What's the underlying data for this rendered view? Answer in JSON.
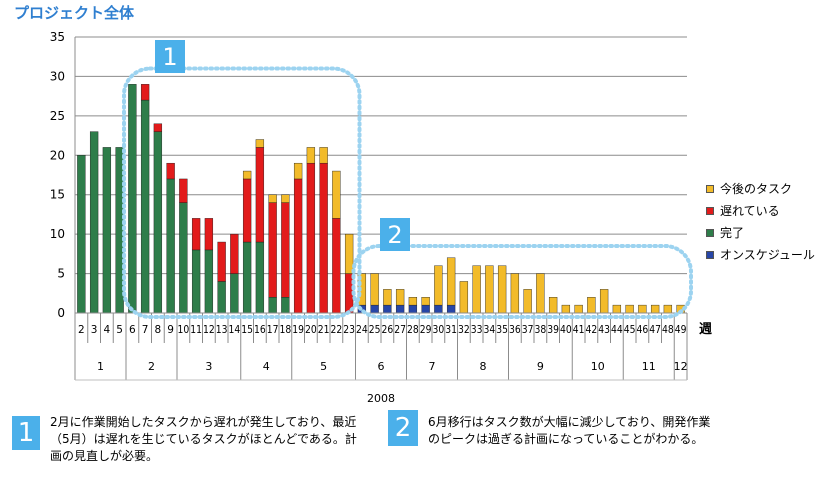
{
  "title": "プロジェクト全体",
  "colors": {
    "future": "#f2bb2a",
    "delayed": "#e21b1b",
    "done": "#2e7d4a",
    "onschedule": "#2746a7",
    "callout": "#9cd3f0",
    "badge": "#4bb0ea"
  },
  "chart_data": {
    "type": "bar",
    "stacked": true,
    "ylim": [
      0,
      35
    ],
    "yticks": [
      0,
      5,
      10,
      15,
      20,
      25,
      30,
      35
    ],
    "grid": true,
    "legend_position": "right",
    "xlabel_unit": "週",
    "year_label": "2008",
    "categories": [
      "2",
      "3",
      "4",
      "5",
      "6",
      "7",
      "8",
      "9",
      "10",
      "11",
      "12",
      "13",
      "14",
      "15",
      "16",
      "17",
      "18",
      "19",
      "20",
      "21",
      "22",
      "23",
      "24",
      "25",
      "26",
      "27",
      "28",
      "29",
      "30",
      "31",
      "32",
      "33",
      "34",
      "35",
      "36",
      "37",
      "38",
      "39",
      "40",
      "41",
      "42",
      "43",
      "44",
      "45",
      "46",
      "47",
      "48",
      "49"
    ],
    "months": [
      {
        "label": "1",
        "count": 4
      },
      {
        "label": "2",
        "count": 4
      },
      {
        "label": "3",
        "count": 5
      },
      {
        "label": "4",
        "count": 4
      },
      {
        "label": "5",
        "count": 5
      },
      {
        "label": "6",
        "count": 4
      },
      {
        "label": "7",
        "count": 4
      },
      {
        "label": "8",
        "count": 4
      },
      {
        "label": "9",
        "count": 5
      },
      {
        "label": "10",
        "count": 4
      },
      {
        "label": "11",
        "count": 4
      },
      {
        "label": "12",
        "count": 1
      }
    ],
    "series": [
      {
        "name": "オンスケジュール",
        "color": "#2746a7",
        "values": [
          0,
          0,
          0,
          0,
          0,
          0,
          0,
          0,
          0,
          0,
          0,
          0,
          0,
          0,
          0,
          0,
          0,
          0,
          0,
          0,
          0,
          0,
          1,
          1,
          1,
          1,
          1,
          1,
          1,
          1,
          0,
          0,
          0,
          0,
          0,
          0,
          0,
          0,
          0,
          0,
          0,
          0,
          0,
          0,
          0,
          0,
          0,
          0
        ]
      },
      {
        "name": "完了",
        "color": "#2e7d4a",
        "values": [
          20,
          23,
          21,
          21,
          29,
          27,
          23,
          17,
          14,
          8,
          8,
          4,
          5,
          9,
          9,
          2,
          2,
          0,
          0,
          0,
          0,
          0,
          0,
          0,
          0,
          0,
          0,
          0,
          0,
          0,
          0,
          0,
          0,
          0,
          0,
          0,
          0,
          0,
          0,
          0,
          0,
          0,
          0,
          0,
          0,
          0,
          0,
          0
        ]
      },
      {
        "name": "遅れている",
        "color": "#e21b1b",
        "values": [
          0,
          0,
          0,
          0,
          0,
          2,
          1,
          2,
          3,
          4,
          4,
          5,
          5,
          8,
          12,
          12,
          12,
          17,
          19,
          19,
          12,
          5,
          0,
          0,
          0,
          0,
          0,
          0,
          0,
          0,
          0,
          0,
          0,
          0,
          0,
          0,
          0,
          0,
          0,
          0,
          0,
          0,
          0,
          0,
          0,
          0,
          0,
          0
        ]
      },
      {
        "name": "今後のタスク",
        "color": "#f2bb2a",
        "values": [
          0,
          0,
          0,
          0,
          0,
          0,
          0,
          0,
          0,
          0,
          0,
          0,
          0,
          1,
          1,
          1,
          1,
          2,
          2,
          2,
          6,
          5,
          4,
          4,
          2,
          2,
          1,
          1,
          5,
          6,
          4,
          6,
          6,
          6,
          5,
          3,
          5,
          2,
          1,
          1,
          2,
          3,
          1,
          1,
          1,
          1,
          1,
          1
        ]
      }
    ],
    "legend_order": [
      "今後のタスク",
      "遅れている",
      "完了",
      "オンスケジュール"
    ],
    "callouts": [
      {
        "badge": "1",
        "from_index": 4,
        "to_index": 21,
        "top_value": 31
      },
      {
        "badge": "2",
        "from_index": 22,
        "to_index": 47,
        "top_value": 8.5
      }
    ]
  },
  "notes": [
    {
      "badge": "1",
      "text": "2月に作業開始したタスクから遅れが発生しており、最近（5月）は遅れを生じているタスクがほとんどである。計画の見直しが必要。"
    },
    {
      "badge": "2",
      "text": "6月移行はタスク数が大幅に減少しており、開発作業のピークは過ぎる計画になっていることがわかる。"
    }
  ]
}
